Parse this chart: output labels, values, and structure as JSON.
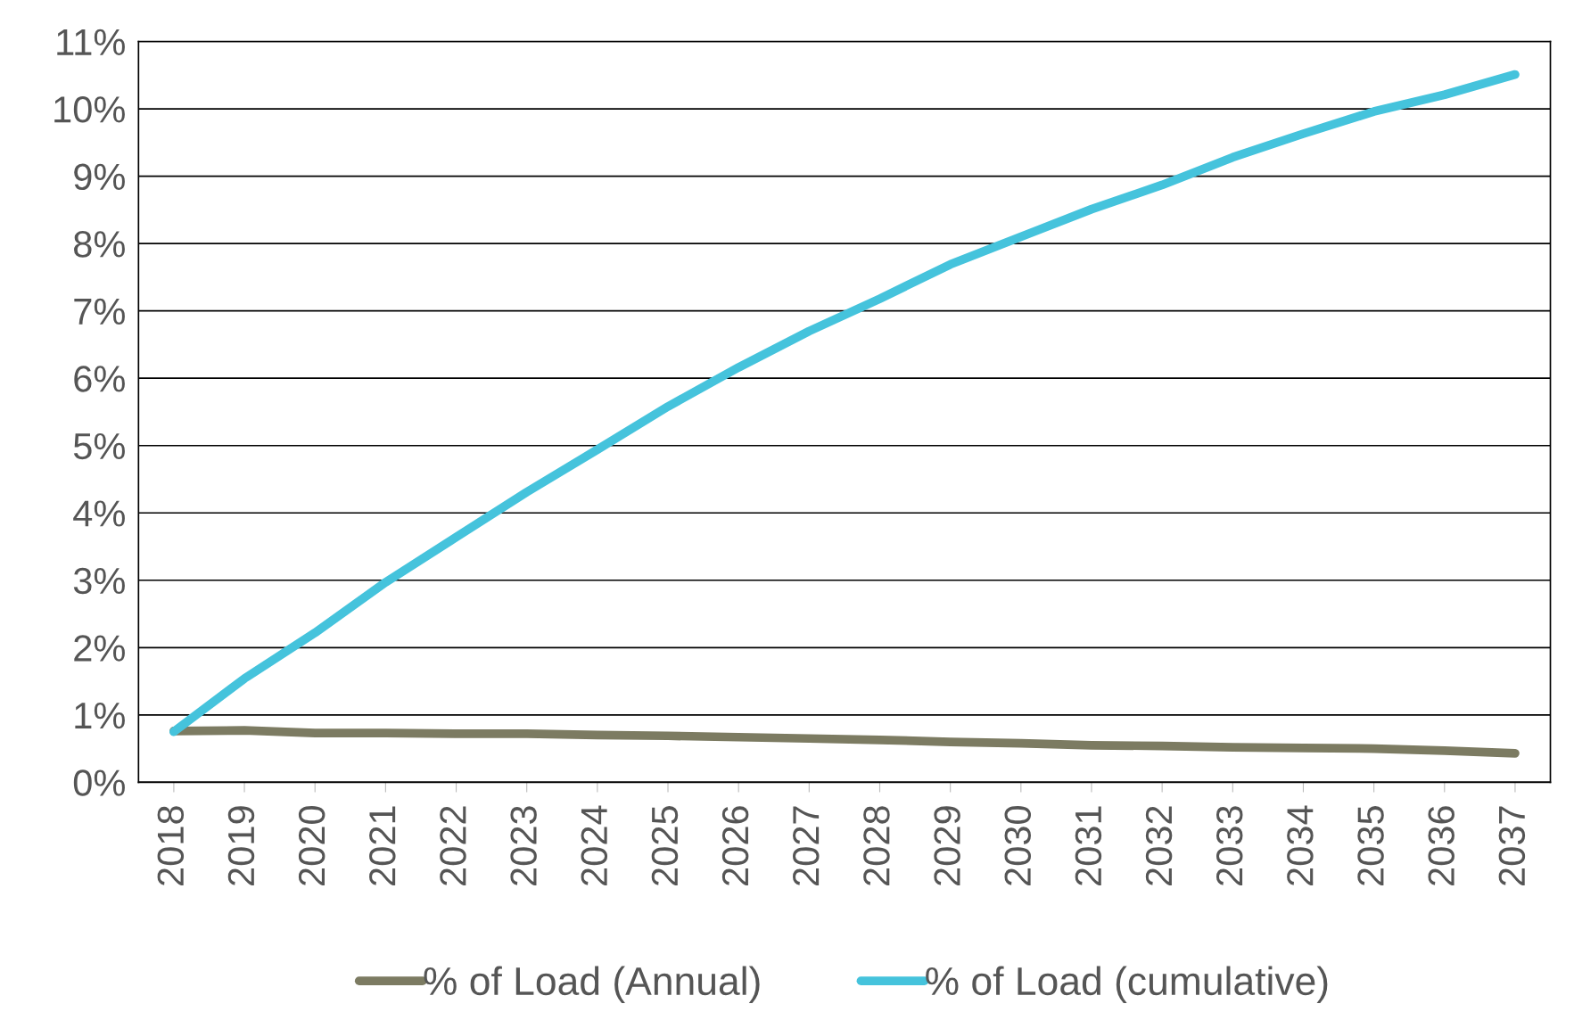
{
  "chart_data": {
    "type": "line",
    "categories": [
      "2018",
      "2019",
      "2020",
      "2021",
      "2022",
      "2023",
      "2024",
      "2025",
      "2026",
      "2027",
      "2028",
      "2029",
      "2030",
      "2031",
      "2032",
      "2033",
      "2034",
      "2035",
      "2036",
      "2037"
    ],
    "series": [
      {
        "name": "% of Load (Annual)",
        "color": "#7c7b62",
        "values": [
          0.76,
          0.77,
          0.73,
          0.73,
          0.72,
          0.72,
          0.7,
          0.69,
          0.67,
          0.65,
          0.63,
          0.6,
          0.58,
          0.55,
          0.54,
          0.52,
          0.51,
          0.5,
          0.47,
          0.43
        ]
      },
      {
        "name": "% of Load (cumulative)",
        "color": "#45c3dc",
        "values": [
          0.75,
          1.54,
          2.22,
          2.97,
          3.64,
          4.31,
          4.94,
          5.58,
          6.16,
          6.7,
          7.18,
          7.69,
          8.1,
          8.51,
          8.87,
          9.28,
          9.63,
          9.96,
          10.21,
          10.51
        ]
      }
    ],
    "ylim": [
      0,
      11
    ],
    "yticks": [
      {
        "value": 0,
        "label": "0%"
      },
      {
        "value": 1,
        "label": "1%"
      },
      {
        "value": 2,
        "label": "2%"
      },
      {
        "value": 3,
        "label": "3%"
      },
      {
        "value": 4,
        "label": "4%"
      },
      {
        "value": 5,
        "label": "5%"
      },
      {
        "value": 6,
        "label": "6%"
      },
      {
        "value": 7,
        "label": "7%"
      },
      {
        "value": 8,
        "label": "8%"
      },
      {
        "value": 9,
        "label": "9%"
      },
      {
        "value": 10,
        "label": "10%"
      },
      {
        "value": 11,
        "label": "11%"
      }
    ],
    "grid": "y",
    "legend": "bottom",
    "marker": "none",
    "line_style": "solid"
  }
}
